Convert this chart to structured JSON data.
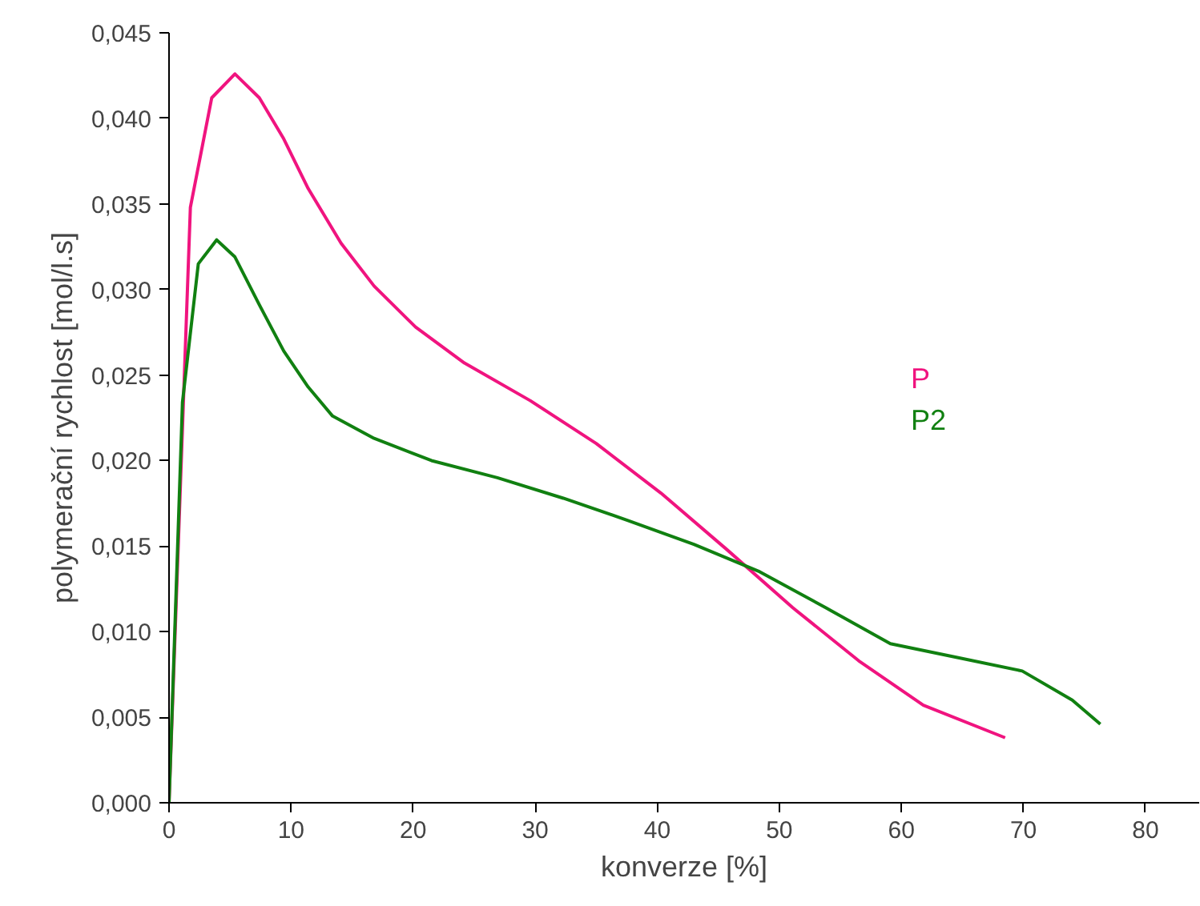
{
  "chart_data": {
    "type": "line",
    "xlabel": "konverze [%]",
    "ylabel": "polymerační rychlost [mol/l.s]",
    "xlim": [
      0,
      84.4
    ],
    "ylim": [
      0,
      0.045
    ],
    "xticks": [
      0,
      10,
      20,
      30,
      40,
      50,
      60,
      70,
      80
    ],
    "yticks": [
      {
        "value": 0,
        "label": "0,000"
      },
      {
        "value": 0.005,
        "label": "0,005"
      },
      {
        "value": 0.01,
        "label": "0,010"
      },
      {
        "value": 0.015,
        "label": "0,015"
      },
      {
        "value": 0.02,
        "label": "0,020"
      },
      {
        "value": 0.025,
        "label": "0,025"
      },
      {
        "value": 0.03,
        "label": "0,030"
      },
      {
        "value": 0.035,
        "label": "0,035"
      },
      {
        "value": 0.04,
        "label": "0,040"
      },
      {
        "value": 0.045,
        "label": "0,045"
      }
    ],
    "grid": false,
    "legend": "right",
    "marker": "none",
    "line_style": "solid",
    "series": [
      {
        "name": "P",
        "color": "#f0147f",
        "x": [
          0,
          1.75,
          3.5,
          5.4,
          7.4,
          9.4,
          11.4,
          14.1,
          16.8,
          20.2,
          24.2,
          29.6,
          35,
          40.3,
          45.7,
          51.1,
          56.5,
          61.8,
          68.5
        ],
        "values": [
          0,
          0.0348,
          0.0412,
          0.0426,
          0.0412,
          0.0388,
          0.0359,
          0.0327,
          0.0302,
          0.0278,
          0.0257,
          0.0235,
          0.021,
          0.0181,
          0.0148,
          0.0114,
          0.0083,
          0.0057,
          0.0038
        ]
      },
      {
        "name": "P2",
        "color": "#118011",
        "x": [
          0,
          1.1,
          2.4,
          3.9,
          5.4,
          7.4,
          9.4,
          11.4,
          13.4,
          16.8,
          21.5,
          26.9,
          32.3,
          37.6,
          43,
          48.4,
          53.8,
          59.1,
          64.5,
          69.9,
          74,
          76.3
        ],
        "values": [
          0,
          0.0234,
          0.0315,
          0.0329,
          0.0319,
          0.0291,
          0.0264,
          0.0243,
          0.0226,
          0.0213,
          0.02,
          0.019,
          0.0178,
          0.0165,
          0.0151,
          0.0135,
          0.0114,
          0.0093,
          0.0085,
          0.0077,
          0.006,
          0.0046
        ]
      }
    ]
  }
}
